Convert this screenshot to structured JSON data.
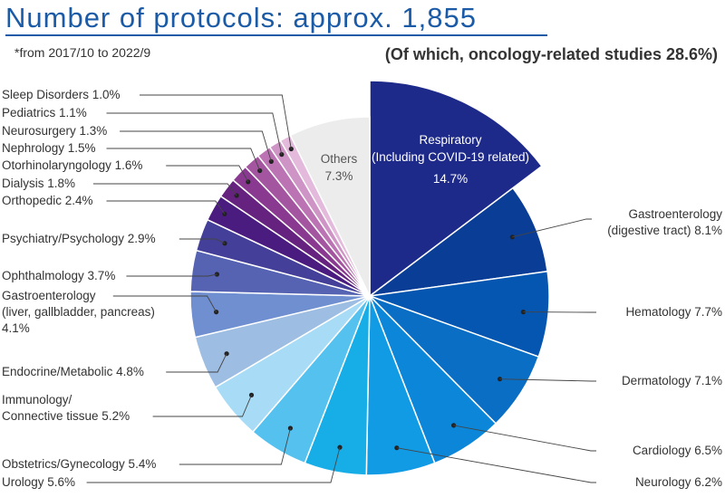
{
  "header": {
    "title": "Number of protocols: approx. 1,855",
    "period_note": "*from 2017/10 to 2022/9",
    "subtitle": "(Of which, oncology-related studies 28.6%)"
  },
  "chart_data": {
    "type": "pie",
    "title": "Number of protocols: approx. 1,855",
    "total_protocols": "approx. 1,855",
    "slices": [
      {
        "label": "Respiratory",
        "sublabel": "(Including COVID-19 related)",
        "value": 14.7,
        "color": "#1e2a8a",
        "exploded": true
      },
      {
        "label": "Gastroenterology\n(digestive tract)",
        "value": 8.1,
        "color": "#0a3d96"
      },
      {
        "label": "Hematology",
        "value": 7.7,
        "color": "#0556b0"
      },
      {
        "label": "Dermatology ",
        "value": 7.1,
        "color": "#0a6ec5"
      },
      {
        "label": "Cardiology",
        "value": 6.5,
        "color": "#0b86d8"
      },
      {
        "label": "Neurology",
        "value": 6.2,
        "color": "#119be5"
      },
      {
        "label": "Urology",
        "value": 5.6,
        "color": "#17aee8"
      },
      {
        "label": "Obstetrics/Gynecology",
        "value": 5.4,
        "color": "#55c1ef"
      },
      {
        "label": "Immunology/\nConnective tissue",
        "value": 5.2,
        "color": "#a8dcf6"
      },
      {
        "label": "Endocrine/Metabolic",
        "value": 4.8,
        "color": "#9dbde3"
      },
      {
        "label": "Gastroenterology\n(liver, gallbladder, pancreas)\n",
        "value": 4.1,
        "color": "#6f8fd0"
      },
      {
        "label": "Ophthalmology",
        "value": 3.7,
        "color": "#5563b2"
      },
      {
        "label": "Psychiatry/Psychology",
        "value": 2.9,
        "color": "#443f98"
      },
      {
        "label": "Orthopedic",
        "value": 2.4,
        "color": "#4b1c80"
      },
      {
        "label": "Dialysis",
        "value": 1.8,
        "color": "#65237f"
      },
      {
        "label": "Otorhinolaryngology",
        "value": 1.6,
        "color": "#893a90"
      },
      {
        "label": "Nephrology",
        "value": 1.5,
        "color": "#a3559f"
      },
      {
        "label": "Neurosurgery",
        "value": 1.3,
        "color": "#bb73b3"
      },
      {
        "label": "Pediatrics",
        "value": 1.1,
        "color": "#cf94c6"
      },
      {
        "label": "Sleep Disorders",
        "value": 1.0,
        "color": "#e3b9dc"
      },
      {
        "label": "Others",
        "value": 7.3,
        "color": "#ececec"
      }
    ]
  }
}
